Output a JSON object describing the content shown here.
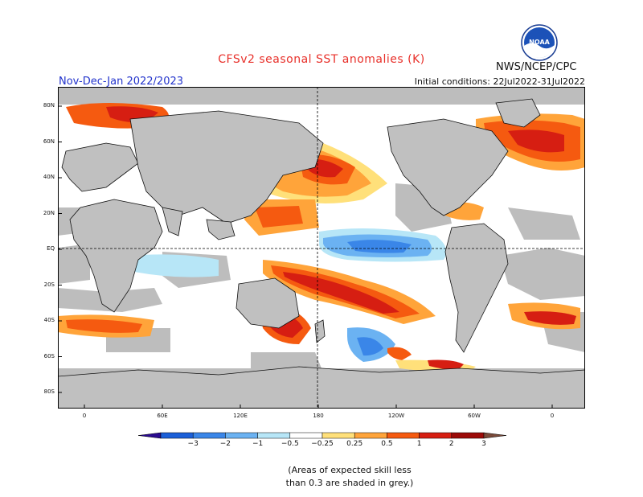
{
  "title": "CFSv2 seasonal SST anomalies (K)",
  "season": "Nov-Dec-Jan 2022/2023",
  "initial_conditions": "Initial conditions: 22Jul2022-31Jul2022",
  "agency": "NWS/NCEP/CPC",
  "logo_text": "NOAA",
  "lat_labels": [
    "80N",
    "60N",
    "40N",
    "20N",
    "EQ",
    "20S",
    "40S",
    "60S",
    "80S"
  ],
  "lon_labels": [
    "0",
    "60E",
    "120E",
    "180",
    "120W",
    "60W",
    "0"
  ],
  "colorbar": {
    "ticks": [
      "−3",
      "−2",
      "−1",
      "−0.5",
      "−0.25",
      "0.25",
      "0.5",
      "1",
      "2",
      "3"
    ],
    "colors": [
      "#2a0b8f",
      "#1b5fd8",
      "#3a86e8",
      "#6bb2f2",
      "#b7e6f7",
      "#ffffff",
      "#ffe07a",
      "#ffa43a",
      "#f55a10",
      "#d61e12",
      "#9c0a08",
      "#7a4a3a"
    ]
  },
  "note": [
    "(Areas of expected skill less",
    "than 0.3 are shaded in grey.)"
  ],
  "land_color": "#c0c0c0",
  "grey_color": "#bdbdbd"
}
